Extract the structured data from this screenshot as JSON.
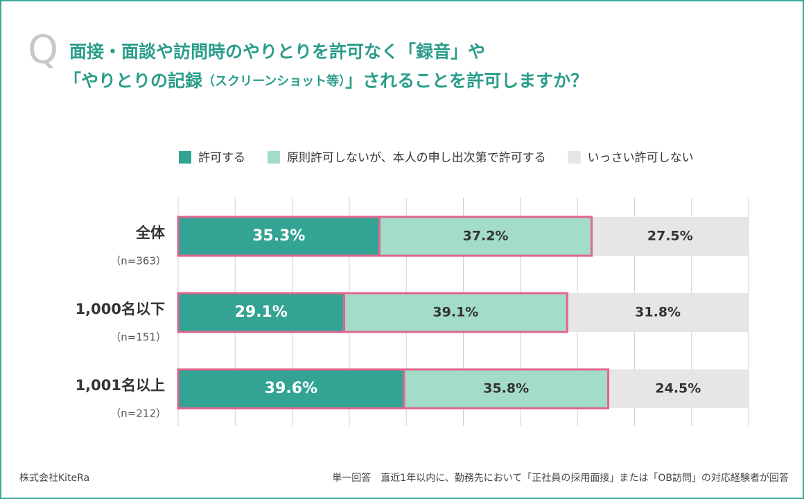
{
  "chart_data": {
    "type": "stacked-bar-horizontal",
    "mark": "Q",
    "title": [
      "面接・面談や訪問時のやりとりを許可なく「録音」や",
      "「やりとりの記録",
      "（スクリーンショット等）",
      "」されることを許可しますか？"
    ],
    "categories": [
      "全体",
      "1,000名以下",
      "1,001名以上"
    ],
    "category_notes": [
      "（n=363）",
      "（n=151）",
      "（n=212）"
    ],
    "series": [
      {
        "name": "許可する",
        "color": "#33a393",
        "label_color": "#ffffff",
        "values": [
          35.3,
          29.1,
          39.6
        ],
        "value_labels": [
          "35.3%",
          "29.1%",
          "39.6%"
        ]
      },
      {
        "name": "原則許可しないが、本人の申し出次第で許可する",
        "color": "#a3dcc7",
        "label_color": "#333333",
        "values": [
          37.2,
          39.1,
          35.8
        ],
        "value_labels": [
          "37.2%",
          "39.1%",
          "35.8%"
        ]
      },
      {
        "name": "いっさい許可しない",
        "color": "#e6e6e6",
        "label_color": "#333333",
        "values": [
          27.5,
          31.8,
          24.5
        ],
        "value_labels": [
          "27.5%",
          "31.8%",
          "24.5%"
        ]
      }
    ],
    "highlight_series": [
      0,
      1
    ],
    "highlight_color": "#e0668f",
    "xlim": [
      0,
      100
    ],
    "xticks": [
      0,
      10,
      20,
      30,
      40,
      50,
      60,
      70,
      80,
      90,
      100
    ],
    "grid": true,
    "legend": "top",
    "footer_left": "株式会社KiteRa",
    "footer_right": "単一回答　直近1年以内に、勤務先において「正社員の採用面接」または「OB訪問」の対応経験者が回答"
  }
}
